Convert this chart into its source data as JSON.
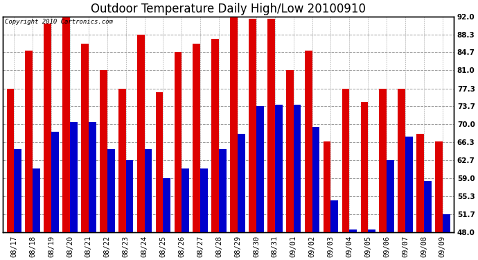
{
  "title": "Outdoor Temperature Daily High/Low 20100910",
  "copyright": "Copyright 2010 Cartronics.com",
  "dates": [
    "08/17",
    "08/18",
    "08/19",
    "08/20",
    "08/21",
    "08/22",
    "08/23",
    "08/24",
    "08/25",
    "08/26",
    "08/27",
    "08/28",
    "08/29",
    "08/30",
    "08/31",
    "09/01",
    "09/02",
    "09/03",
    "09/04",
    "09/05",
    "09/06",
    "09/07",
    "09/08",
    "09/09"
  ],
  "highs": [
    77.3,
    85.0,
    90.5,
    93.0,
    86.5,
    81.0,
    77.3,
    88.3,
    76.5,
    84.7,
    86.5,
    87.5,
    92.0,
    91.5,
    91.5,
    81.0,
    85.0,
    66.5,
    77.3,
    74.5,
    77.3,
    77.3,
    68.0,
    66.5
  ],
  "lows": [
    65.0,
    61.0,
    68.5,
    70.5,
    70.5,
    65.0,
    62.7,
    65.0,
    59.0,
    61.0,
    61.0,
    65.0,
    68.0,
    73.7,
    74.0,
    74.0,
    69.5,
    54.5,
    48.5,
    48.5,
    62.7,
    67.5,
    58.5,
    51.7
  ],
  "high_color": "#dd0000",
  "low_color": "#0000cc",
  "bg_color": "#ffffff",
  "plot_bg_color": "#ffffff",
  "grid_color": "#999999",
  "ylim_min": 48.0,
  "ylim_max": 92.0,
  "yticks": [
    48.0,
    51.7,
    55.3,
    59.0,
    62.7,
    66.3,
    70.0,
    73.7,
    77.3,
    81.0,
    84.7,
    88.3,
    92.0
  ],
  "bar_width": 0.4,
  "title_fontsize": 12,
  "tick_fontsize": 7.5,
  "copyright_fontsize": 6.5
}
